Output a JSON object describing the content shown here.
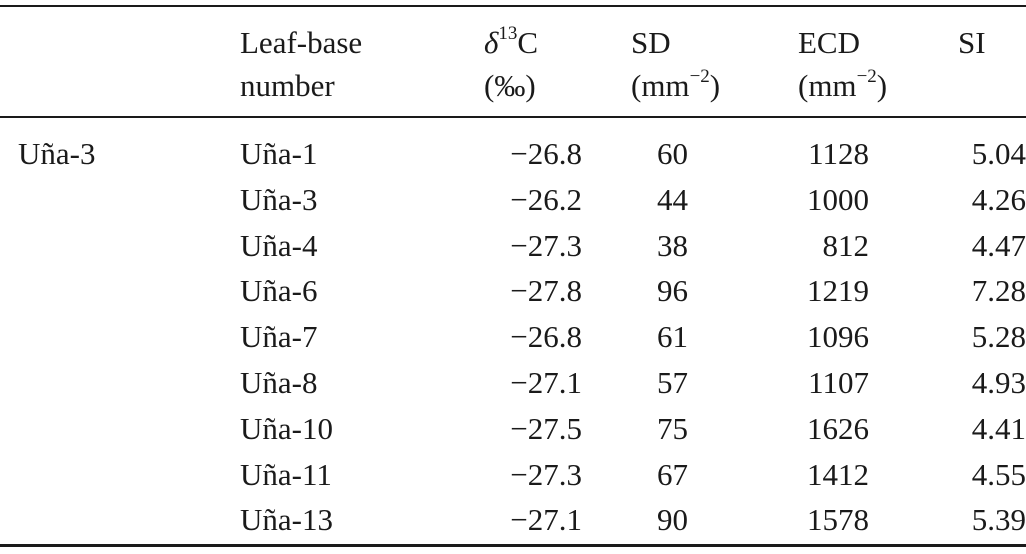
{
  "table": {
    "header": {
      "leaf_line1": "Leaf-base",
      "leaf_line2": "number",
      "d13_symbol": "δ",
      "d13_sup": "13",
      "d13_element": "C",
      "d13_unit": "(‰)",
      "sd_line1": "SD",
      "sd_unit_base": "(mm",
      "sd_unit_sup": "−2",
      "sd_unit_close": ")",
      "ecd_line1": "ECD",
      "ecd_unit_base": "(mm",
      "ecd_unit_sup": "−2",
      "ecd_unit_close": ")",
      "si_line1": "SI"
    },
    "group_label": "Uña-3",
    "rows": [
      {
        "leaf": "Uña-1",
        "d13c": "−26.8",
        "sd": "60",
        "ecd": "1128",
        "si": "5.04"
      },
      {
        "leaf": "Uña-3",
        "d13c": "−26.2",
        "sd": "44",
        "ecd": "1000",
        "si": "4.26"
      },
      {
        "leaf": "Uña-4",
        "d13c": "−27.3",
        "sd": "38",
        "ecd": "812",
        "si": "4.47"
      },
      {
        "leaf": "Uña-6",
        "d13c": "−27.8",
        "sd": "96",
        "ecd": "1219",
        "si": "7.28"
      },
      {
        "leaf": "Uña-7",
        "d13c": "−26.8",
        "sd": "61",
        "ecd": "1096",
        "si": "5.28"
      },
      {
        "leaf": "Uña-8",
        "d13c": "−27.1",
        "sd": "57",
        "ecd": "1107",
        "si": "4.93"
      },
      {
        "leaf": "Uña-10",
        "d13c": "−27.5",
        "sd": "75",
        "ecd": "1626",
        "si": "4.41"
      },
      {
        "leaf": "Uña-11",
        "d13c": "−27.3",
        "sd": "67",
        "ecd": "1412",
        "si": "4.55"
      },
      {
        "leaf": "Uña-13",
        "d13c": "−27.1",
        "sd": "90",
        "ecd": "1578",
        "si": "5.39"
      }
    ]
  }
}
